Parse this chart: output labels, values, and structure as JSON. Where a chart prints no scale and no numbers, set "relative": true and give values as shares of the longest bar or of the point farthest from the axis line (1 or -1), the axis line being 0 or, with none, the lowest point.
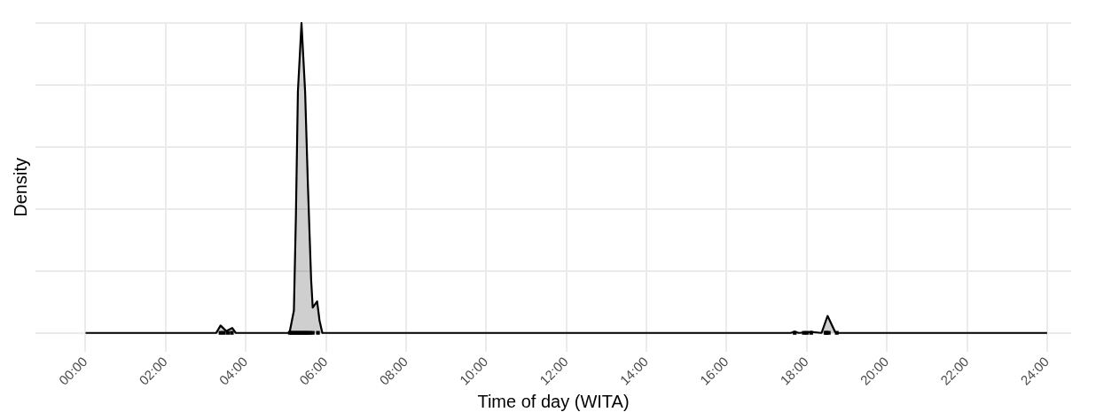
{
  "chart_data": {
    "type": "area",
    "relative": true,
    "xlabel": "Time of day (WITA)",
    "ylabel": "Density",
    "grid": true,
    "legend": false,
    "xlim": [
      -1.25,
      24.6
    ],
    "xticks": [
      {
        "value": 0,
        "label": "00:00"
      },
      {
        "value": 2,
        "label": "02:00"
      },
      {
        "value": 4,
        "label": "04:00"
      },
      {
        "value": 6,
        "label": "06:00"
      },
      {
        "value": 8,
        "label": "08:00"
      },
      {
        "value": 10,
        "label": "10:00"
      },
      {
        "value": 12,
        "label": "12:00"
      },
      {
        "value": 14,
        "label": "14:00"
      },
      {
        "value": 16,
        "label": "16:00"
      },
      {
        "value": 18,
        "label": "18:00"
      },
      {
        "value": 20,
        "label": "20:00"
      },
      {
        "value": 22,
        "label": "22:00"
      },
      {
        "value": 24,
        "label": "24:00"
      }
    ],
    "series": [
      {
        "color": "#000000",
        "x": [
          0,
          3.26,
          3.37,
          3.51,
          3.66,
          3.75,
          5.09,
          5.2,
          5.25,
          5.3,
          5.39,
          5.48,
          5.55,
          5.63,
          5.67,
          5.78,
          5.84,
          5.91,
          17.6,
          17.7,
          17.8,
          18.11,
          18.37,
          18.52,
          18.71,
          18.78,
          24
        ],
        "values": [
          0,
          0,
          0.024,
          0.006,
          0.016,
          0,
          0,
          0.072,
          0.375,
          0.779,
          1,
          0.779,
          0.476,
          0.173,
          0.082,
          0.102,
          0.04,
          0,
          0,
          0.004,
          0,
          0.003,
          0,
          0.055,
          0.003,
          0,
          0
        ]
      },
      {
        "type": "scatter",
        "color": "#000000",
        "x": [
          3.37,
          3.45,
          3.55,
          3.65,
          5.1,
          5.15,
          5.2,
          5.25,
          5.3,
          5.35,
          5.4,
          5.45,
          5.5,
          5.55,
          5.6,
          5.67,
          5.8,
          17.7,
          17.93,
          18.0,
          18.11,
          18.47,
          18.5,
          18.55,
          18.75
        ],
        "values": [
          0,
          0,
          0,
          0,
          0,
          0,
          0,
          0,
          0,
          0,
          0,
          0,
          0,
          0,
          0,
          0,
          0,
          0,
          0,
          0,
          0,
          0,
          0,
          0,
          0
        ]
      }
    ]
  }
}
